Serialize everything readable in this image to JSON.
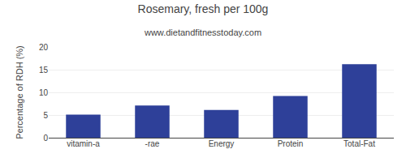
{
  "chart_data": {
    "type": "bar",
    "title": "Rosemary, fresh per 100g",
    "subtitle": "www.dietandfitnesstoday.com",
    "categories": [
      "vitamin-a",
      "-rae",
      "Energy",
      "Protein",
      "Total-Fat"
    ],
    "values": [
      5.1,
      7.1,
      6.1,
      9.2,
      16.2
    ],
    "color": "#2e4099",
    "ylabel": "Percentage of RDH (%)",
    "ylim": [
      0,
      20
    ],
    "yticks": [
      0,
      5,
      10,
      15,
      20
    ],
    "grid": true
  }
}
